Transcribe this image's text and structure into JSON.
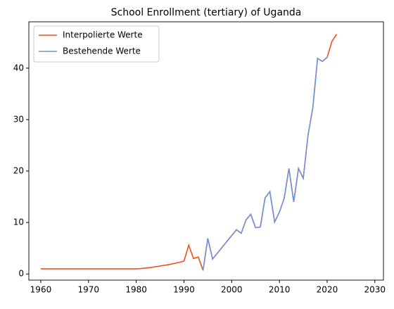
{
  "chart_data": {
    "type": "line",
    "title": "School Enrollment (tertiary) of Uganda",
    "series": [
      {
        "name": "Interpolierte Werte",
        "color": "#f0501e",
        "x": [
          1960,
          1961,
          1962,
          1963,
          1964,
          1965,
          1966,
          1967,
          1968,
          1969,
          1970,
          1971,
          1972,
          1973,
          1974,
          1975,
          1976,
          1977,
          1978,
          1979,
          1980,
          1981,
          1982,
          1983,
          1984,
          1985,
          1986,
          1987,
          1988,
          1989,
          1990,
          1991,
          1992,
          1993,
          1994,
          1995,
          1996,
          1997,
          1998,
          1999,
          2000,
          2001,
          2002,
          2003,
          2004,
          2005,
          2006,
          2007,
          2008,
          2009,
          2010,
          2011,
          2012,
          2013,
          2014,
          2015,
          2016,
          2017,
          2018,
          2019,
          2020,
          2021,
          2022
        ],
        "values": [
          1,
          1,
          1,
          1,
          1,
          1,
          1,
          1,
          1,
          1,
          1,
          1,
          1,
          1,
          1,
          1,
          1,
          1,
          1,
          1,
          1,
          1.05,
          1.15,
          1.25,
          1.4,
          1.55,
          1.7,
          1.85,
          2.05,
          2.25,
          2.5,
          5.6,
          3,
          3.3,
          0.7,
          6.9,
          2.9,
          4.04,
          5.18,
          6.32,
          7.46,
          8.6,
          7.9,
          10.5,
          11.6,
          9,
          9.1,
          14.8,
          16,
          10.1,
          12,
          14.7,
          20.5,
          14,
          20.5,
          18.6,
          27,
          32.3,
          41.9,
          41.3,
          42.1,
          45.2,
          46.6
        ]
      },
      {
        "name": "Bestehende Werte",
        "color": "#6f95dc",
        "x": [
          1994,
          1995,
          1996,
          2001,
          2002,
          2003,
          2004,
          2005,
          2006,
          2007,
          2008,
          2009,
          2010,
          2011,
          2012,
          2013,
          2014,
          2015,
          2016,
          2017,
          2018,
          2019,
          2020
        ],
        "values": [
          0.7,
          6.9,
          2.9,
          8.6,
          7.9,
          10.5,
          11.6,
          9,
          9.1,
          14.8,
          16,
          10.1,
          12,
          14.7,
          20.5,
          14,
          20.5,
          18.6,
          27,
          32.3,
          41.9,
          41.3,
          42.1
        ]
      }
    ],
    "xlim": [
      1957.5,
      2031.8
    ],
    "xticks": [
      1960,
      1970,
      1980,
      1990,
      2000,
      2010,
      2020,
      2030
    ],
    "ylim": [
      -1.2,
      49
    ],
    "yticks": [
      0,
      10,
      20,
      30,
      40
    ],
    "grid": false,
    "legend": "upper-left"
  }
}
